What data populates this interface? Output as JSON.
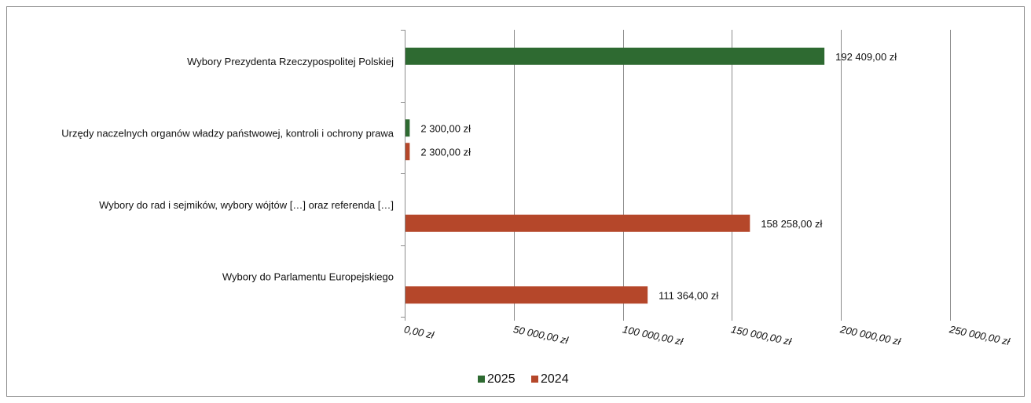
{
  "chart_data": {
    "type": "bar",
    "orientation": "horizontal",
    "categories": [
      "Wybory Prezydenta Rzeczypospolitej Polskiej",
      "Urzędy naczelnych organów władzy państwowej, kontroli i ochrony prawa",
      "Wybory do rad i sejmików, wybory wójtów […] oraz referenda […]",
      "Wybory do Parlamentu Europejskiego"
    ],
    "series": [
      {
        "name": "2025",
        "color": "#2e6a31",
        "values": [
          192409,
          2300,
          null,
          null
        ],
        "labels": [
          "192 409,00 zł",
          "2 300,00 zł",
          "",
          ""
        ]
      },
      {
        "name": "2024",
        "color": "#b5472a",
        "values": [
          null,
          2300,
          158258,
          111364
        ],
        "labels": [
          "",
          "2 300,00 zł",
          "158 258,00 zł",
          "111 364,00 zł"
        ]
      }
    ],
    "xlim": [
      0,
      250000
    ],
    "x_ticks": [
      0,
      50000,
      100000,
      150000,
      200000,
      250000
    ],
    "x_tick_labels": [
      "0,00 zł",
      "50 000,00 zł",
      "100 000,00 zł",
      "150 000,00 zł",
      "200 000,00 zł",
      "250 000,00 zł"
    ],
    "grid": true,
    "legend_position": "bottom",
    "title": "",
    "xlabel": "",
    "ylabel": ""
  }
}
